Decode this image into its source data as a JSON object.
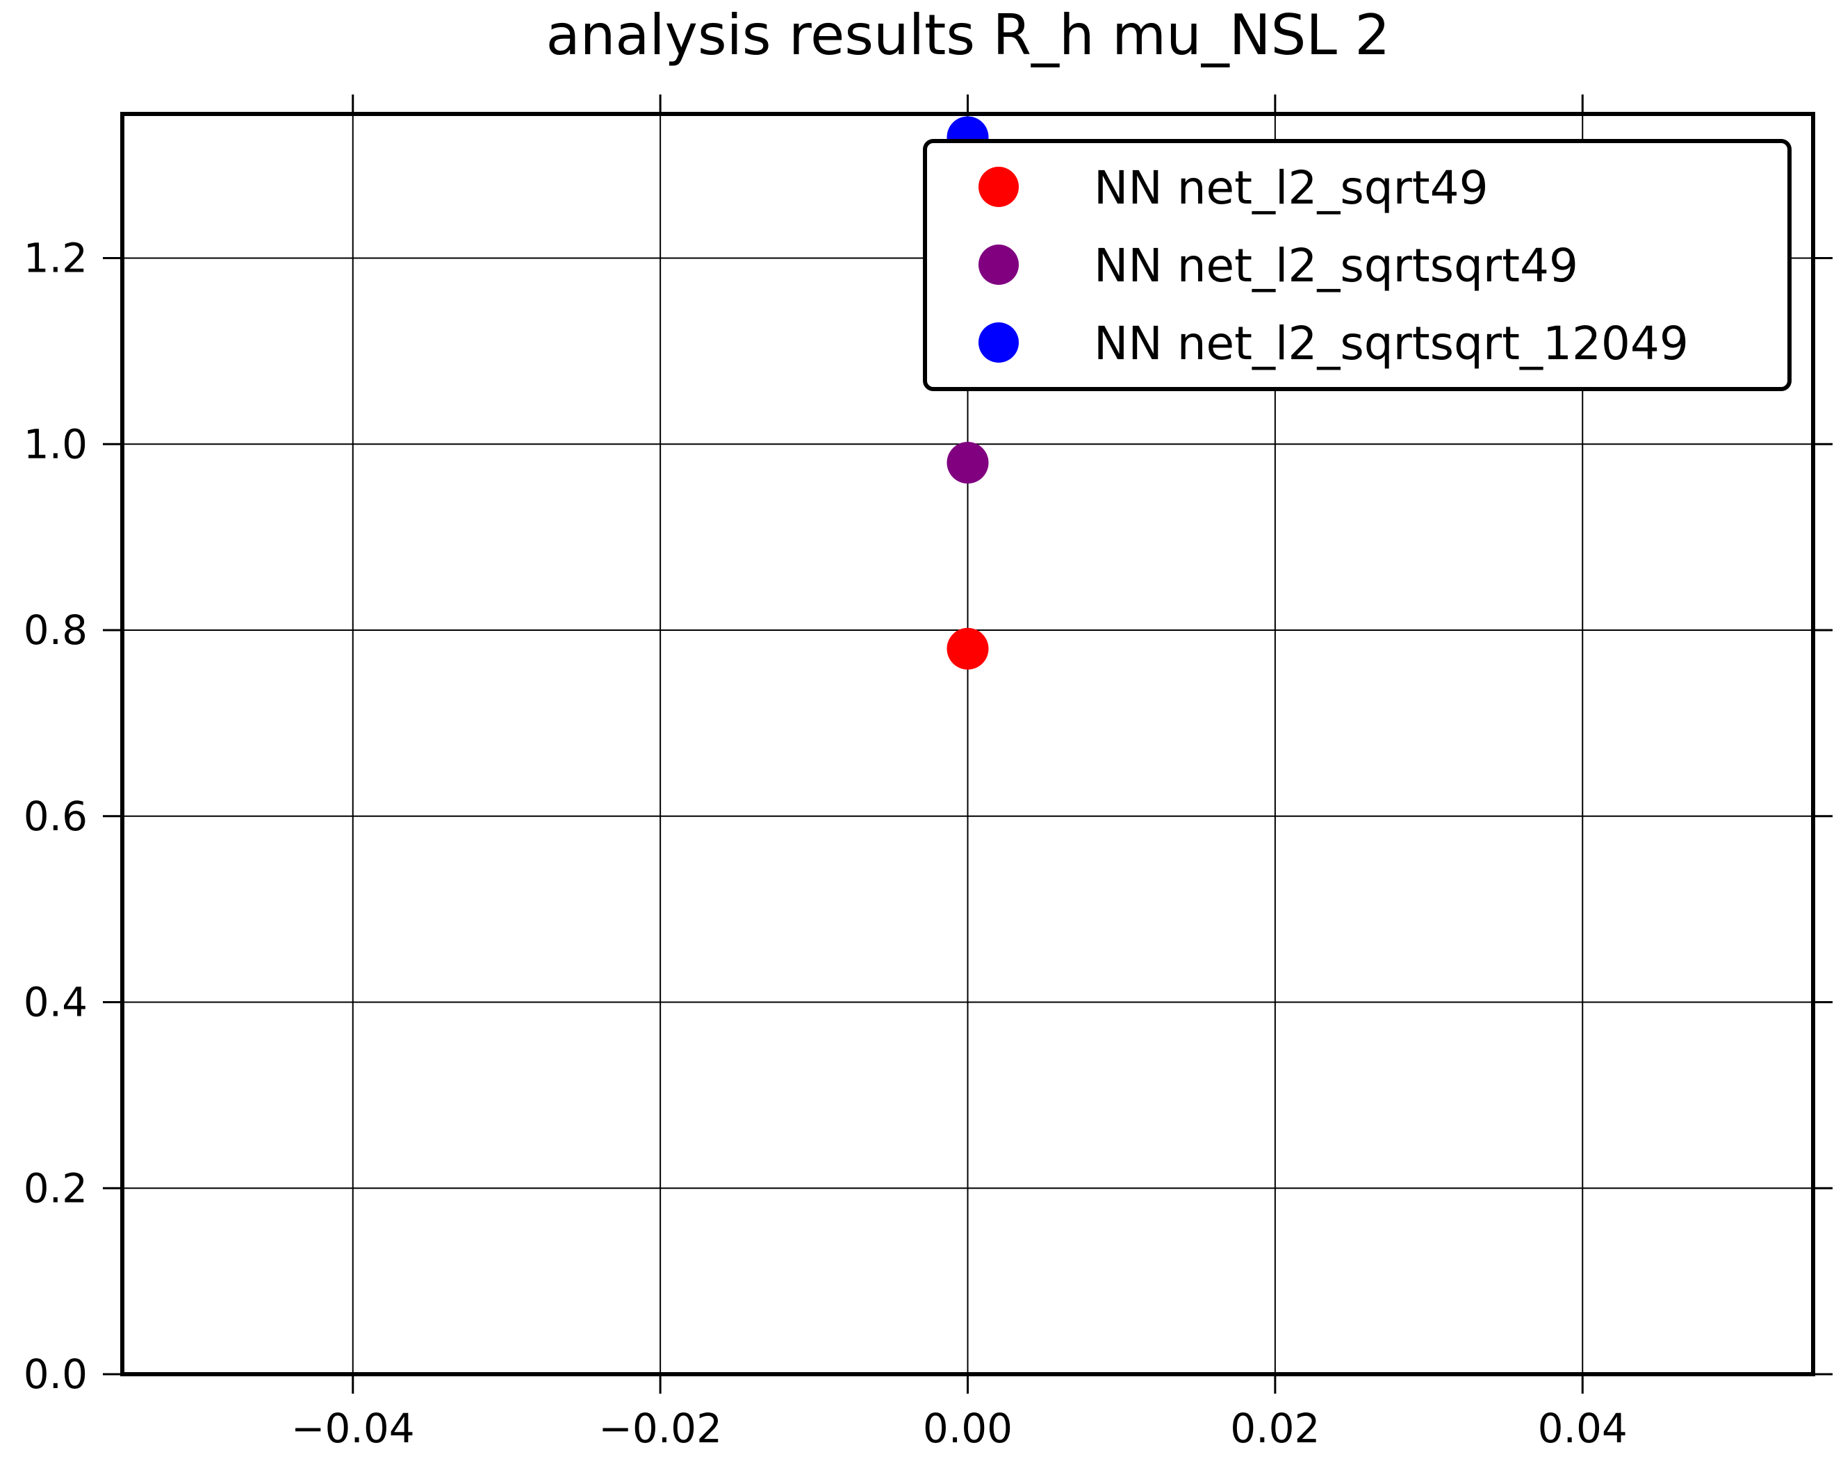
{
  "chart_data": {
    "type": "scatter",
    "title": "analysis results R_h  mu_NSL 2",
    "xlabel": "",
    "ylabel": "",
    "xlim": [
      -0.055,
      0.055
    ],
    "ylim": [
      0.0,
      1.355
    ],
    "xticks": [
      -0.04,
      -0.02,
      0.0,
      0.02,
      0.04
    ],
    "xtick_labels": [
      "−0.04",
      "−0.02",
      "0.00",
      "0.02",
      "0.04"
    ],
    "yticks": [
      0.0,
      0.2,
      0.4,
      0.6,
      0.8,
      1.0,
      1.2
    ],
    "ytick_labels": [
      "0.0",
      "0.2",
      "0.4",
      "0.6",
      "0.8",
      "1.0",
      "1.2"
    ],
    "grid": true,
    "legend_position": "top-right",
    "series": [
      {
        "name": "NN net_l2_sqrt49",
        "color": "#ff0000",
        "points": [
          {
            "x": 0.0,
            "y": 0.78
          }
        ]
      },
      {
        "name": "NN net_l2_sqrtsqrt49",
        "color": "#800080",
        "points": [
          {
            "x": 0.0,
            "y": 0.98
          }
        ]
      },
      {
        "name": "NN net_l2_sqrtsqrt_12049",
        "color": "#0000ff",
        "points": [
          {
            "x": 0.0,
            "y": 1.33
          }
        ]
      }
    ]
  }
}
